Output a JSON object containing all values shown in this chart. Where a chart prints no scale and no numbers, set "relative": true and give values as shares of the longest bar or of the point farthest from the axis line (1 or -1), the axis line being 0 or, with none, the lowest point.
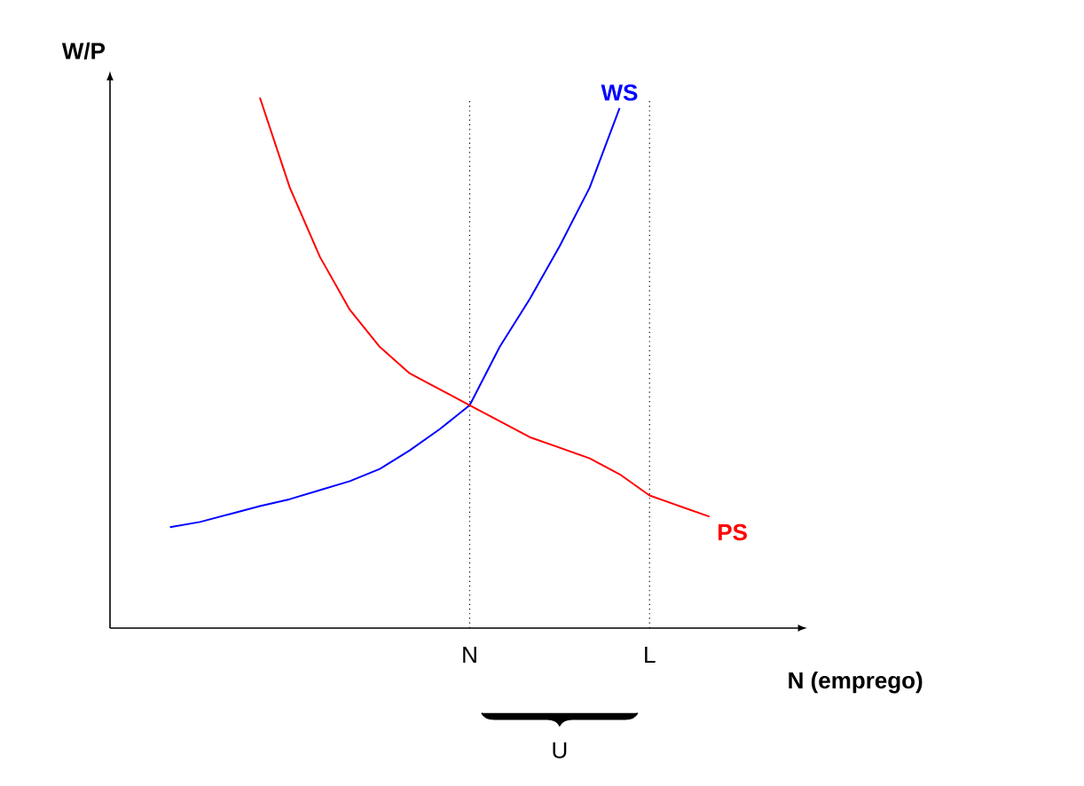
{
  "chart_data": {
    "type": "line",
    "relative": true,
    "xlabel": "N (emprego)",
    "ylabel": "W/P",
    "categories": [
      null,
      null,
      null,
      null,
      null,
      null,
      null,
      null,
      null,
      null,
      null,
      null,
      "N",
      null,
      null,
      null,
      null,
      null,
      "L",
      null,
      null,
      null,
      null,
      null
    ],
    "tick_labels": "x",
    "series": [
      {
        "name": "WS",
        "color": "#0000ff",
        "values": [
          null,
          null,
          0.19,
          0.2,
          0.215,
          0.23,
          0.243,
          0.26,
          0.277,
          0.3,
          0.335,
          0.375,
          0.42,
          0.53,
          0.62,
          0.72,
          0.83,
          0.98,
          null,
          null,
          null,
          null,
          null,
          null
        ]
      },
      {
        "name": "PS",
        "color": "#ff0000",
        "values": [
          null,
          null,
          null,
          null,
          null,
          1.0,
          0.83,
          0.7,
          0.6,
          0.53,
          0.48,
          0.45,
          0.42,
          0.39,
          0.36,
          0.34,
          0.32,
          0.29,
          0.25,
          0.23,
          0.21,
          null,
          null,
          null
        ]
      }
    ],
    "ref_lines": [
      {
        "axis": "x",
        "value": "N",
        "line_style": "dotted"
      },
      {
        "axis": "x",
        "value": "L",
        "line_style": "dotted"
      }
    ],
    "annotations": [
      "U"
    ]
  }
}
